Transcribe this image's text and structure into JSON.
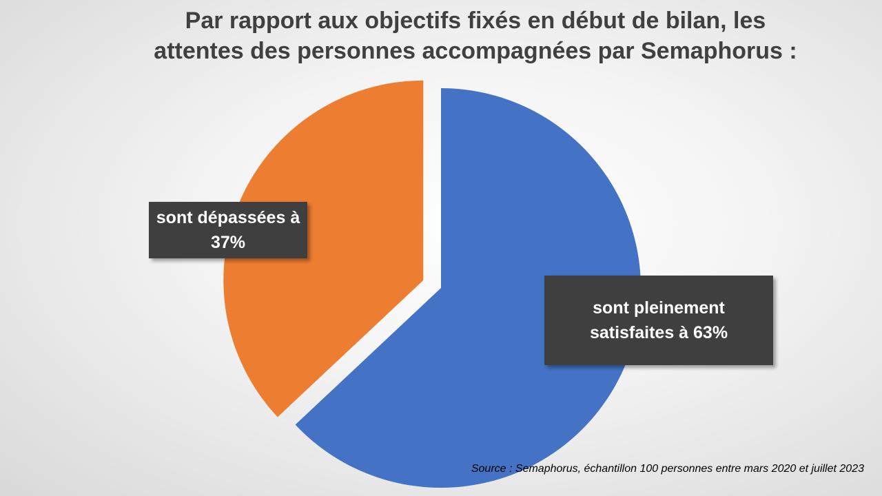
{
  "chart_data": {
    "type": "pie",
    "title": "Par rapport aux objectifs fixés en début de bilan, les\nattentes des personnes accompagnées par Semaphorus  :",
    "slices": [
      {
        "label": "sont pleinement\nsatisfaites à  63%",
        "value": 63,
        "color": "#4472C4",
        "exploded": false
      },
      {
        "label": "sont dépassées à\n37%",
        "value": 37,
        "color": "#ED7D31",
        "exploded": true
      }
    ],
    "source": "Source : Semaphorus, échantillon 100 personnes entre mars 2020 et juillet 2023"
  }
}
